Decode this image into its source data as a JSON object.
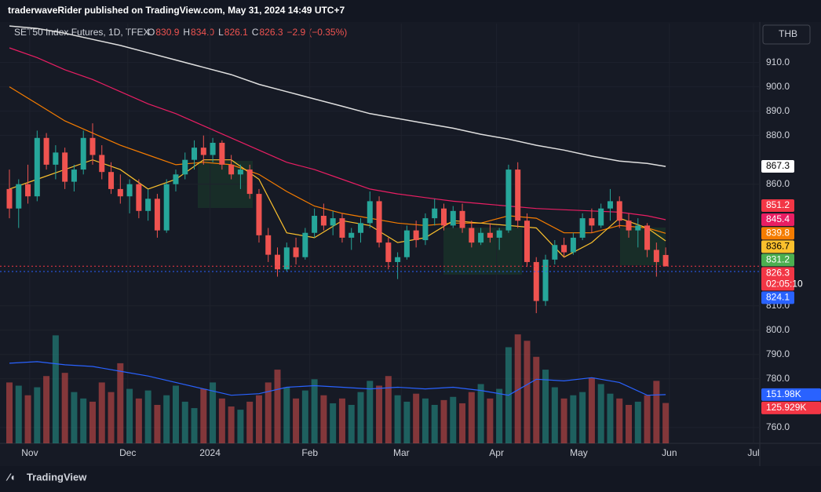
{
  "header": {
    "publisher": "traderwaveRider published on TradingView.com, May 31, 2024 14:49 UTC+7",
    "footer": "TradingView"
  },
  "chart_data": {
    "type": "candlestick",
    "symbol": "SET50 Index Futures, 1D, TFEX",
    "ohlc_letters": [
      "O",
      "H",
      "L",
      "C"
    ],
    "ohlc": [
      {
        "value": 830.9,
        "label": "830.9"
      },
      {
        "value": 834,
        "label": "834.0"
      },
      {
        "value": 826.1,
        "label": "826.1"
      },
      {
        "value": 826.3,
        "label": "826.3"
      }
    ],
    "change": {
      "value": -2.9,
      "label": "−2.9"
    },
    "change_pct": {
      "value": -0.35,
      "label": "(−0.35%)"
    },
    "currency": "THB",
    "countdown": "02:05:10",
    "up_color": "#26a69a",
    "down_color": "#ef5350",
    "xlim": [
      0,
      80.5
    ],
    "xticks": [
      {
        "value": 2.2,
        "label": "Nov"
      },
      {
        "value": 12.8,
        "label": "Dec"
      },
      {
        "value": 21.7,
        "label": "2024"
      },
      {
        "value": 32.5,
        "label": "Feb"
      },
      {
        "value": 42.4,
        "label": "Mar"
      },
      {
        "value": 52.7,
        "label": "Apr"
      },
      {
        "value": 61.6,
        "label": "May"
      },
      {
        "value": 71.4,
        "label": "Jun"
      },
      {
        "value": 80.5,
        "label": "Jul"
      }
    ],
    "ylim": [
      753.5,
      926
    ],
    "yticks": [
      {
        "value": 910,
        "label": "910.0"
      },
      {
        "value": 900,
        "label": "900.0"
      },
      {
        "value": 890,
        "label": "890.0"
      },
      {
        "value": 880,
        "label": "880.0"
      },
      {
        "value": 860,
        "label": "860.0"
      },
      {
        "value": 810,
        "label": "810.0"
      },
      {
        "value": 800,
        "label": "800.0"
      },
      {
        "value": 790,
        "label": "790.0"
      },
      {
        "value": 780,
        "label": "780.0"
      },
      {
        "value": 760,
        "label": "760.0"
      }
    ],
    "candles": [
      [
        858,
        866,
        846,
        850
      ],
      [
        850,
        862,
        842,
        860
      ],
      [
        860,
        868,
        852,
        855
      ],
      [
        855,
        882,
        853,
        879
      ],
      [
        879,
        881,
        866,
        868
      ],
      [
        868,
        876,
        862,
        873
      ],
      [
        873,
        875,
        858,
        861
      ],
      [
        861,
        868,
        857,
        866
      ],
      [
        866,
        882,
        864,
        879
      ],
      [
        879,
        885,
        868,
        872
      ],
      [
        872,
        876,
        862,
        865
      ],
      [
        865,
        869,
        856,
        858
      ],
      [
        858,
        864,
        852,
        855
      ],
      [
        855,
        862,
        848,
        860
      ],
      [
        860,
        862,
        846,
        849
      ],
      [
        849,
        858,
        845,
        854
      ],
      [
        854,
        856,
        838,
        841
      ],
      [
        841,
        862,
        840,
        860
      ],
      [
        860,
        866,
        857,
        864
      ],
      [
        864,
        873,
        862,
        870
      ],
      [
        870,
        878,
        866,
        875
      ],
      [
        875,
        880,
        868,
        872
      ],
      [
        872,
        879,
        869,
        877
      ],
      [
        877,
        878,
        866,
        868
      ],
      [
        868,
        872,
        862,
        864
      ],
      [
        864,
        868,
        858,
        866
      ],
      [
        866,
        868,
        854,
        856
      ],
      [
        856,
        858,
        836,
        839
      ],
      [
        839,
        842,
        828,
        831
      ],
      [
        831,
        834,
        822,
        825
      ],
      [
        825,
        836,
        824,
        834
      ],
      [
        834,
        838,
        827,
        830
      ],
      [
        830,
        842,
        829,
        840
      ],
      [
        840,
        850,
        838,
        847
      ],
      [
        847,
        852,
        841,
        843
      ],
      [
        843,
        849,
        839,
        846
      ],
      [
        846,
        848,
        836,
        838
      ],
      [
        838,
        842,
        833,
        840
      ],
      [
        840,
        846,
        836,
        844
      ],
      [
        844,
        857,
        842,
        853
      ],
      [
        853,
        855,
        834,
        836
      ],
      [
        836,
        838,
        825,
        828
      ],
      [
        828,
        832,
        821,
        830
      ],
      [
        830,
        843,
        829,
        841
      ],
      [
        841,
        845,
        834,
        837
      ],
      [
        837,
        848,
        835,
        846
      ],
      [
        846,
        854,
        843,
        850
      ],
      [
        850,
        852,
        841,
        843
      ],
      [
        843,
        851,
        842,
        849
      ],
      [
        849,
        852,
        840,
        842
      ],
      [
        842,
        845,
        834,
        836
      ],
      [
        836,
        842,
        835,
        840
      ],
      [
        840,
        844,
        836,
        838
      ],
      [
        838,
        842,
        833,
        841
      ],
      [
        841,
        868,
        840,
        866
      ],
      [
        866,
        869,
        842,
        845
      ],
      [
        845,
        848,
        826,
        828
      ],
      [
        828,
        830,
        807,
        812
      ],
      [
        812,
        831,
        810,
        829
      ],
      [
        829,
        837,
        827,
        835
      ],
      [
        835,
        838,
        830,
        832
      ],
      [
        832,
        840,
        831,
        838
      ],
      [
        838,
        848,
        837,
        846
      ],
      [
        846,
        850,
        840,
        843
      ],
      [
        843,
        852,
        842,
        850
      ],
      [
        850,
        858,
        845,
        853
      ],
      [
        853,
        855,
        842,
        845
      ],
      [
        845,
        848,
        838,
        841
      ],
      [
        841,
        846,
        834,
        843
      ],
      [
        843,
        844,
        830,
        833
      ],
      [
        833,
        836,
        822,
        828
      ],
      [
        830.9,
        834,
        826.1,
        826.3
      ]
    ],
    "volume_lim": [
      0,
      1310000
    ],
    "volume": [
      190000,
      180000,
      150000,
      175000,
      210000,
      337000,
      220000,
      160000,
      140000,
      130000,
      190000,
      160000,
      250000,
      170000,
      140000,
      165000,
      120000,
      150000,
      180000,
      130000,
      110000,
      170000,
      190000,
      140000,
      115000,
      105000,
      130000,
      150000,
      190000,
      230000,
      175000,
      140000,
      165000,
      200000,
      150000,
      125000,
      140000,
      120000,
      160000,
      195000,
      180000,
      210000,
      150000,
      130000,
      155000,
      140000,
      120000,
      135000,
      145000,
      125000,
      160000,
      185000,
      140000,
      170000,
      300000,
      340000,
      320000,
      270000,
      230000,
      175000,
      140000,
      150000,
      160000,
      205000,
      185000,
      155000,
      140000,
      120000,
      130000,
      150000,
      195000,
      125929
    ],
    "line_x": [
      0,
      3,
      6,
      9,
      12,
      15,
      18,
      21,
      24,
      27,
      30,
      33,
      36,
      39,
      42,
      45,
      48,
      51,
      54,
      57,
      60,
      63,
      66,
      69,
      71
    ],
    "lines": [
      {
        "color": "#e0e0e0",
        "values": [
          925,
          924,
          922,
          919.5,
          917,
          914,
          911,
          908,
          905,
          901,
          898,
          895,
          892,
          889,
          887,
          885,
          883,
          880.5,
          878.5,
          876,
          874,
          871.5,
          869.5,
          868.5,
          867.3
        ]
      },
      {
        "color": "#e91e63",
        "values": [
          916,
          912,
          907,
          903,
          898,
          893,
          889,
          884,
          879,
          874,
          869,
          866,
          862,
          858,
          856,
          854.5,
          853,
          852,
          851,
          850,
          849.5,
          849,
          848.5,
          847,
          845.4
        ]
      },
      {
        "color": "#f57c00",
        "values": [
          900,
          893,
          886,
          881,
          876,
          872,
          868,
          869,
          868,
          864,
          857,
          851,
          848,
          846,
          844,
          843,
          844,
          844,
          847,
          846,
          840,
          840,
          843,
          842,
          839.8
        ]
      },
      {
        "color": "#fbc02d",
        "values": [
          858,
          862,
          866,
          870,
          866,
          858,
          862,
          870,
          870,
          862,
          840,
          838,
          845,
          843,
          836,
          838,
          845,
          844,
          843,
          842,
          830,
          836,
          846,
          842,
          836.7
        ]
      }
    ],
    "volume_ma": {
      "color": "#2962ff",
      "values": [
        250000,
        255000,
        245000,
        240000,
        225000,
        210000,
        190000,
        170000,
        150000,
        155000,
        175000,
        180000,
        175000,
        170000,
        175000,
        170000,
        175000,
        165000,
        150000,
        200000,
        195000,
        205000,
        190000,
        150000,
        151980
      ]
    },
    "price_tags": [
      {
        "value": 867.3,
        "color": "#ffffff"
      },
      {
        "value": 851.2,
        "color": "#f23645"
      },
      {
        "value": 845.4,
        "color": "#e91e63"
      },
      {
        "value": 839.8,
        "color": "#f57c00"
      },
      {
        "value": 836.7,
        "color": "#fbc02d"
      },
      {
        "value": 831.2,
        "color": "#4caf50"
      },
      {
        "value": 826.3,
        "color": "#f23645"
      },
      {
        "value": 824.1,
        "color": "#2962ff"
      }
    ],
    "volume_tags": [
      {
        "value": 151980,
        "label": "151.98K",
        "color": "#2962ff"
      },
      {
        "value": 125929,
        "label": "125.929K",
        "color": "#f23645"
      }
    ]
  }
}
